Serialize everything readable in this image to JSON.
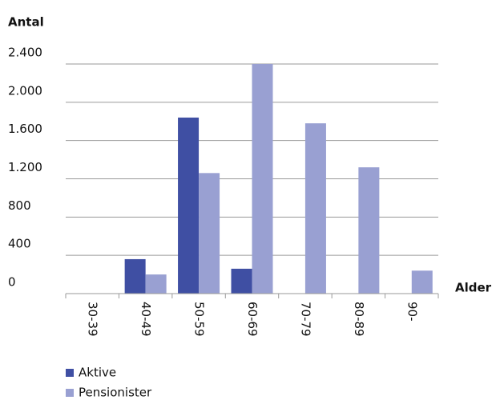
{
  "chart_data": {
    "type": "bar",
    "y_label": "Antal",
    "x_label": "Alder",
    "categories": [
      "30-39",
      "40-49",
      "50-59",
      "60-69",
      "70-79",
      "80-89",
      "90-"
    ],
    "series": [
      {
        "name": "Aktive",
        "color": "#3f4fa3",
        "values": [
          0,
          360,
          1840,
          260,
          0,
          0,
          0
        ]
      },
      {
        "name": "Pensionister",
        "color": "#99a0d2",
        "values": [
          0,
          200,
          1260,
          2400,
          1780,
          1320,
          240
        ]
      }
    ],
    "ylim": [
      0,
      2400
    ],
    "yticks": [
      0,
      400,
      800,
      {
        "value": 1200,
        "label": "1.200"
      },
      {
        "value": 1600,
        "label": "1.600"
      },
      {
        "value": 2000,
        "label": "2.000"
      },
      {
        "value": 2400,
        "label": "2.400"
      }
    ],
    "grid": true
  }
}
